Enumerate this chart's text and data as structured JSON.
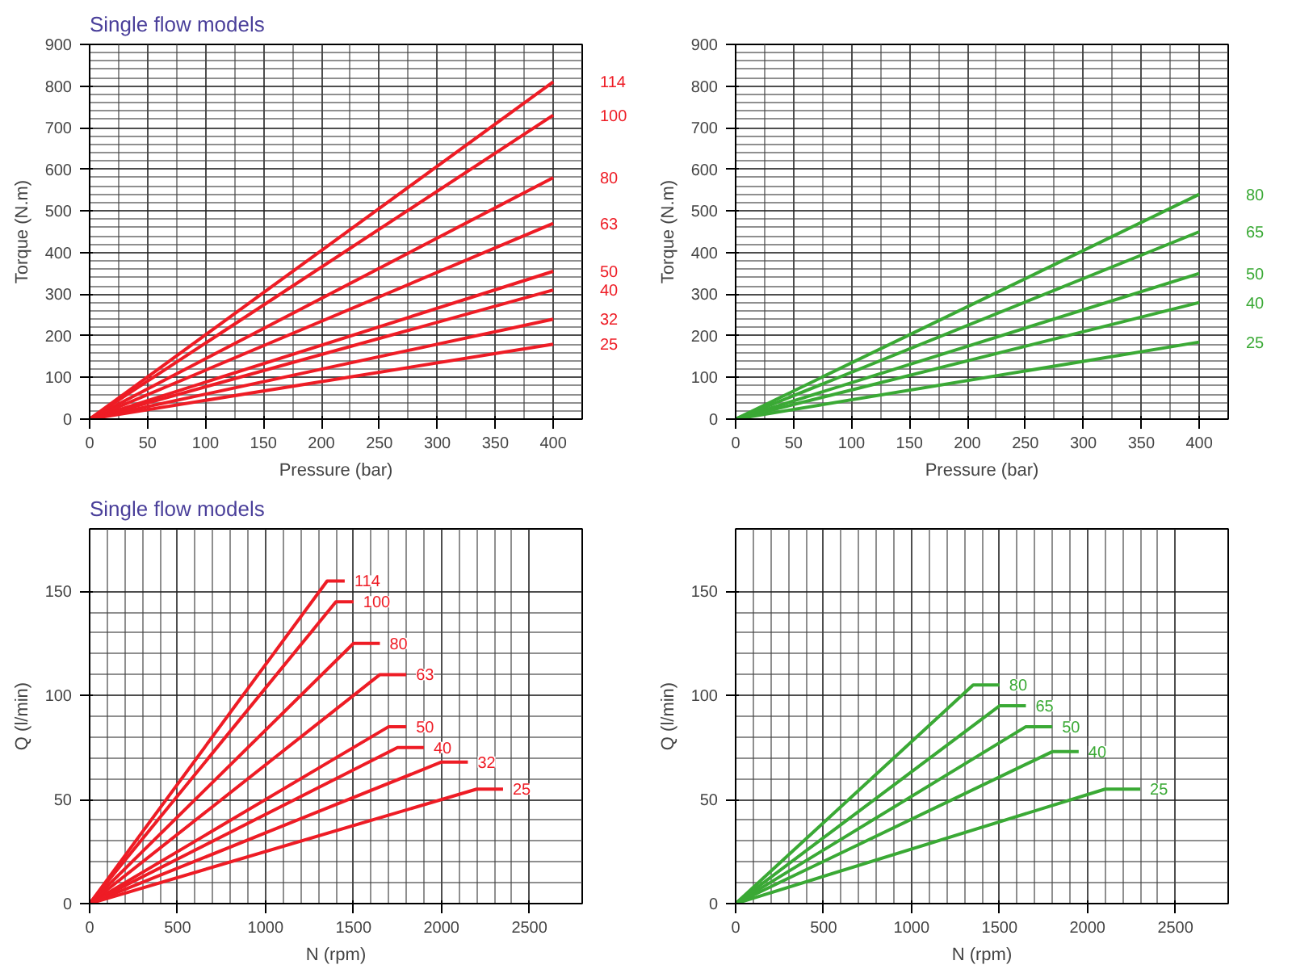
{
  "chart_data": [
    {
      "type": "line",
      "title": "Single flow models",
      "xlabel": "Pressure (bar)",
      "ylabel": "Torque (N.m)",
      "xlim": [
        0,
        425
      ],
      "ylim": [
        0,
        900
      ],
      "xticks": [
        0,
        50,
        100,
        150,
        200,
        250,
        300,
        350,
        400
      ],
      "yticks": [
        0,
        100,
        200,
        300,
        400,
        500,
        600,
        700,
        800,
        900
      ],
      "grid": true,
      "legend": false,
      "marker": "none",
      "line_style": "solid",
      "series": [
        {
          "name": "114",
          "color": "#ee1c25",
          "x": [
            0,
            400
          ],
          "values": [
            0,
            810
          ]
        },
        {
          "name": "100",
          "color": "#ee1c25",
          "x": [
            0,
            400
          ],
          "values": [
            0,
            730
          ]
        },
        {
          "name": "80",
          "color": "#ee1c25",
          "x": [
            0,
            400
          ],
          "values": [
            0,
            580
          ]
        },
        {
          "name": "63",
          "color": "#ee1c25",
          "x": [
            0,
            400
          ],
          "values": [
            0,
            470
          ]
        },
        {
          "name": "50",
          "color": "#ee1c25",
          "x": [
            0,
            400
          ],
          "values": [
            0,
            355
          ]
        },
        {
          "name": "40",
          "color": "#ee1c25",
          "x": [
            0,
            400
          ],
          "values": [
            0,
            310
          ]
        },
        {
          "name": "32",
          "color": "#ee1c25",
          "x": [
            0,
            400
          ],
          "values": [
            0,
            240
          ]
        },
        {
          "name": "25",
          "color": "#ee1c25",
          "x": [
            0,
            400
          ],
          "values": [
            0,
            180
          ]
        }
      ]
    },
    {
      "type": "line",
      "xlabel": "Pressure (bar)",
      "ylabel": "Torque (N.m)",
      "xlim": [
        0,
        425
      ],
      "ylim": [
        0,
        900
      ],
      "xticks": [
        0,
        50,
        100,
        150,
        200,
        250,
        300,
        350,
        400
      ],
      "yticks": [
        0,
        100,
        200,
        300,
        400,
        500,
        600,
        700,
        800,
        900
      ],
      "grid": true,
      "legend": false,
      "marker": "none",
      "line_style": "solid",
      "series": [
        {
          "name": "80",
          "color": "#3aa935",
          "x": [
            0,
            400
          ],
          "values": [
            0,
            540
          ]
        },
        {
          "name": "65",
          "color": "#3aa935",
          "x": [
            0,
            400
          ],
          "values": [
            0,
            450
          ]
        },
        {
          "name": "50",
          "color": "#3aa935",
          "x": [
            0,
            400
          ],
          "values": [
            0,
            350
          ]
        },
        {
          "name": "40",
          "color": "#3aa935",
          "x": [
            0,
            400
          ],
          "values": [
            0,
            280
          ]
        },
        {
          "name": "25",
          "color": "#3aa935",
          "x": [
            0,
            400
          ],
          "values": [
            0,
            185
          ]
        }
      ]
    },
    {
      "type": "line",
      "title": "Single flow models",
      "xlabel": "N (rpm)",
      "ylabel": "Q (l/min)",
      "xlim": [
        0,
        2800
      ],
      "ylim": [
        0,
        180
      ],
      "xticks": [
        0,
        500,
        1000,
        1500,
        2000,
        2500
      ],
      "yticks": [
        0,
        50,
        100,
        150
      ],
      "grid": true,
      "legend": false,
      "marker": "none",
      "line_style": "solid",
      "series": [
        {
          "name": "114",
          "color": "#ee1c25",
          "x": [
            0,
            1350,
            1450
          ],
          "values": [
            0,
            155,
            155
          ]
        },
        {
          "name": "100",
          "color": "#ee1c25",
          "x": [
            0,
            1400,
            1500
          ],
          "values": [
            0,
            145,
            145
          ]
        },
        {
          "name": "80",
          "color": "#ee1c25",
          "x": [
            0,
            1500,
            1650
          ],
          "values": [
            0,
            125,
            125
          ]
        },
        {
          "name": "63",
          "color": "#ee1c25",
          "x": [
            0,
            1650,
            1800
          ],
          "values": [
            0,
            110,
            110
          ]
        },
        {
          "name": "50",
          "color": "#ee1c25",
          "x": [
            0,
            1700,
            1800
          ],
          "values": [
            0,
            85,
            85
          ]
        },
        {
          "name": "40",
          "color": "#ee1c25",
          "x": [
            0,
            1750,
            1900
          ],
          "values": [
            0,
            75,
            75
          ]
        },
        {
          "name": "32",
          "color": "#ee1c25",
          "x": [
            0,
            2000,
            2150
          ],
          "values": [
            0,
            68,
            68
          ]
        },
        {
          "name": "25",
          "color": "#ee1c25",
          "x": [
            0,
            2200,
            2350
          ],
          "values": [
            0,
            55,
            55
          ]
        }
      ]
    },
    {
      "type": "line",
      "xlabel": "N (rpm)",
      "ylabel": "Q (l/min)",
      "xlim": [
        0,
        2800
      ],
      "ylim": [
        0,
        180
      ],
      "xticks": [
        0,
        500,
        1000,
        1500,
        2000,
        2500
      ],
      "yticks": [
        0,
        50,
        100,
        150
      ],
      "grid": true,
      "legend": false,
      "marker": "none",
      "line_style": "solid",
      "series": [
        {
          "name": "80",
          "color": "#3aa935",
          "x": [
            0,
            1350,
            1500
          ],
          "values": [
            0,
            105,
            105
          ]
        },
        {
          "name": "65",
          "color": "#3aa935",
          "x": [
            0,
            1500,
            1650
          ],
          "values": [
            0,
            95,
            95
          ]
        },
        {
          "name": "50",
          "color": "#3aa935",
          "x": [
            0,
            1650,
            1800
          ],
          "values": [
            0,
            85,
            85
          ]
        },
        {
          "name": "40",
          "color": "#3aa935",
          "x": [
            0,
            1800,
            1950
          ],
          "values": [
            0,
            73,
            73
          ]
        },
        {
          "name": "25",
          "color": "#3aa935",
          "x": [
            0,
            2100,
            2300
          ],
          "values": [
            0,
            55,
            55
          ]
        }
      ]
    }
  ]
}
